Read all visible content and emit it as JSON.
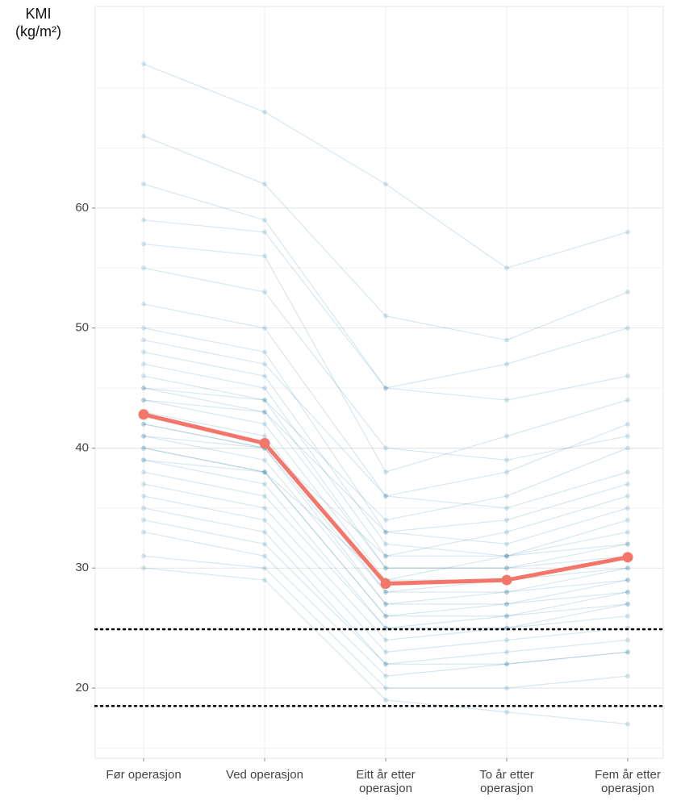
{
  "chart_data": {
    "type": "line",
    "y_label": "KMI\n(kg/m²)",
    "categories": [
      "Før operasjon",
      "Ved operasjon",
      "Eitt år etter\noperasjon",
      "To år etter\noperasjon",
      "Fem år etter\noperasjon"
    ],
    "series": [
      {
        "color": "#f4766a",
        "values": [
          42.8,
          40.4,
          28.7,
          29.0,
          30.9
        ]
      }
    ],
    "individual_color": "#1f78a8",
    "individuals": [
      [
        59,
        58,
        45,
        44,
        46
      ],
      [
        55,
        53,
        40,
        39,
        41
      ],
      [
        52,
        50,
        36,
        35,
        38
      ],
      [
        50,
        48,
        33,
        32,
        35
      ],
      [
        48,
        46,
        32,
        31,
        33
      ],
      [
        47,
        45,
        31,
        31,
        32
      ],
      [
        46,
        44,
        30,
        30,
        32
      ],
      [
        45,
        43,
        30,
        30,
        31
      ],
      [
        44,
        42,
        29,
        29,
        31
      ],
      [
        43,
        41,
        28,
        29,
        30
      ],
      [
        42,
        40,
        28,
        28,
        30
      ],
      [
        42,
        40,
        27,
        28,
        29
      ],
      [
        41,
        39,
        27,
        27,
        29
      ],
      [
        40,
        38,
        26,
        27,
        28
      ],
      [
        40,
        38,
        26,
        26,
        28
      ],
      [
        39,
        37,
        25,
        26,
        27
      ],
      [
        38,
        36,
        25,
        25,
        27
      ],
      [
        37,
        35,
        24,
        25,
        26
      ],
      [
        36,
        34,
        23,
        24,
        25
      ],
      [
        35,
        33,
        22,
        23,
        24
      ],
      [
        34,
        32,
        22,
        22,
        23
      ],
      [
        33,
        31,
        21,
        22,
        23
      ],
      [
        31,
        30,
        20,
        20,
        21
      ],
      [
        66,
        62,
        51,
        49,
        53
      ],
      [
        62,
        59,
        45,
        47,
        50
      ],
      [
        57,
        56,
        38,
        41,
        44
      ],
      [
        49,
        47,
        36,
        38,
        42
      ],
      [
        45,
        44,
        34,
        36,
        40
      ],
      [
        44,
        43,
        33,
        34,
        37
      ],
      [
        41,
        40,
        31,
        33,
        36
      ],
      [
        39,
        38,
        29,
        31,
        34
      ],
      [
        72,
        68,
        62,
        55,
        58
      ],
      [
        30,
        29,
        19,
        18,
        17
      ]
    ],
    "reference_lines": [
      24.9,
      18.5
    ],
    "ylim": [
      14.15,
      76.8
    ],
    "yticks": [
      20,
      30,
      40,
      50,
      60
    ],
    "minor_yticks": [
      15,
      25,
      35,
      45,
      55,
      65,
      70
    ],
    "grid": true
  }
}
